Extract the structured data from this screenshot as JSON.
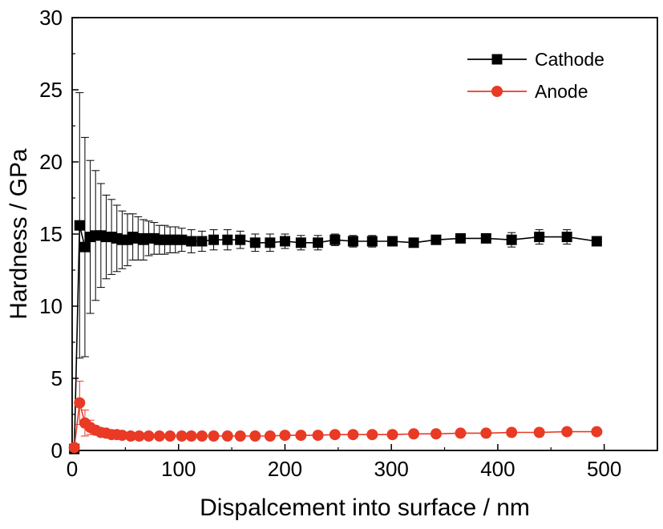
{
  "chart_data": {
    "type": "line",
    "title": "",
    "xlabel": "Dispalcement into surface / nm",
    "ylabel": "Hardness / GPa",
    "xlim": [
      0,
      550
    ],
    "ylim": [
      0,
      30
    ],
    "xticks": [
      0,
      100,
      200,
      300,
      400,
      500
    ],
    "yticks": [
      0,
      5,
      10,
      15,
      20,
      25,
      30
    ],
    "grid": false,
    "legend_position": "top-right",
    "series": [
      {
        "name": "Cathode",
        "color": "#000000",
        "marker": "square",
        "x": [
          2,
          7,
          12,
          17,
          22,
          27,
          32,
          37,
          42,
          47,
          52,
          57,
          62,
          67,
          72,
          77,
          82,
          87,
          92,
          97,
          103,
          112,
          122,
          133,
          146,
          158,
          172,
          186,
          200,
          215,
          231,
          247,
          264,
          282,
          301,
          321,
          342,
          365,
          389,
          413,
          439,
          465,
          493
        ],
        "y": [
          0.1,
          15.6,
          14.1,
          14.8,
          14.9,
          14.9,
          14.8,
          14.8,
          14.7,
          14.6,
          14.6,
          14.8,
          14.7,
          14.6,
          14.7,
          14.7,
          14.6,
          14.6,
          14.6,
          14.6,
          14.6,
          14.5,
          14.5,
          14.6,
          14.6,
          14.6,
          14.4,
          14.4,
          14.5,
          14.4,
          14.4,
          14.6,
          14.5,
          14.5,
          14.5,
          14.4,
          14.6,
          14.7,
          14.7,
          14.6,
          14.8,
          14.8,
          14.5
        ],
        "err": [
          0,
          9.2,
          7.6,
          5.3,
          4.5,
          3.6,
          2.9,
          2.6,
          2.3,
          2.0,
          1.8,
          1.6,
          1.5,
          1.4,
          1.2,
          1.1,
          1.0,
          1.0,
          0.9,
          0.9,
          0.8,
          0.8,
          0.7,
          0.7,
          0.7,
          0.6,
          0.6,
          0.6,
          0.5,
          0.5,
          0.5,
          0.4,
          0.4,
          0.4,
          0.3,
          0.3,
          0.3,
          0.3,
          0.3,
          0.5,
          0.5,
          0.5,
          0.2
        ]
      },
      {
        "name": "Anode",
        "color": "#e83a24",
        "marker": "circle",
        "x": [
          2,
          7,
          12,
          17,
          22,
          27,
          32,
          37,
          42,
          47,
          55,
          63,
          72,
          82,
          92,
          103,
          112,
          122,
          133,
          146,
          158,
          172,
          186,
          200,
          215,
          231,
          247,
          264,
          282,
          301,
          321,
          342,
          365,
          389,
          413,
          439,
          465,
          493
        ],
        "y": [
          0.2,
          3.3,
          1.9,
          1.6,
          1.4,
          1.25,
          1.2,
          1.1,
          1.1,
          1.05,
          1.0,
          1.0,
          1.0,
          1.0,
          1.0,
          1.0,
          1.0,
          1.0,
          1.0,
          1.0,
          1.0,
          1.0,
          1.0,
          1.05,
          1.05,
          1.05,
          1.1,
          1.1,
          1.1,
          1.1,
          1.15,
          1.15,
          1.2,
          1.2,
          1.25,
          1.25,
          1.3,
          1.3
        ],
        "err": [
          0,
          1.5,
          0.9,
          0.5,
          0.3,
          0.2,
          0.15,
          0.1,
          0.1,
          0.1,
          0.08,
          0.08,
          0.08,
          0.08,
          0.08,
          0.08,
          0.06,
          0.06,
          0.06,
          0.06,
          0.06,
          0.06,
          0.06,
          0.06,
          0.06,
          0.06,
          0.06,
          0.06,
          0.06,
          0.06,
          0.06,
          0.06,
          0.06,
          0.06,
          0.06,
          0.06,
          0.06,
          0.06
        ]
      }
    ]
  }
}
